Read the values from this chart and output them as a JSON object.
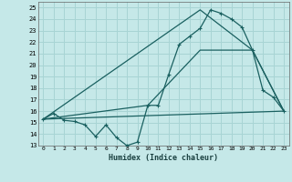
{
  "title": "",
  "xlabel": "Humidex (Indice chaleur)",
  "bg_color": "#c5e8e8",
  "grid_color": "#a8d4d4",
  "line_color": "#1a6060",
  "xlim": [
    -0.5,
    23.5
  ],
  "ylim": [
    13,
    25.5
  ],
  "yticks": [
    13,
    14,
    15,
    16,
    17,
    18,
    19,
    20,
    21,
    22,
    23,
    24,
    25
  ],
  "xticks": [
    0,
    1,
    2,
    3,
    4,
    5,
    6,
    7,
    8,
    9,
    10,
    11,
    12,
    13,
    14,
    15,
    16,
    17,
    18,
    19,
    20,
    21,
    22,
    23
  ],
  "series1_x": [
    0,
    1,
    2,
    3,
    4,
    5,
    6,
    7,
    8,
    9,
    10,
    11,
    12,
    13,
    14,
    15,
    16,
    17,
    18,
    19,
    20,
    21,
    22,
    23
  ],
  "series1_y": [
    15.3,
    15.8,
    15.2,
    15.1,
    14.8,
    13.8,
    14.8,
    13.7,
    13.0,
    13.3,
    16.5,
    16.5,
    19.2,
    21.8,
    22.5,
    23.2,
    24.8,
    24.5,
    24.0,
    23.3,
    21.3,
    17.8,
    17.2,
    16.0
  ],
  "series2_x": [
    0,
    23
  ],
  "series2_y": [
    15.3,
    16.0
  ],
  "series3_x": [
    0,
    10,
    15,
    20,
    23
  ],
  "series3_y": [
    15.3,
    16.5,
    21.3,
    21.3,
    16.0
  ],
  "series4_x": [
    0,
    15,
    20,
    23
  ],
  "series4_y": [
    15.3,
    24.8,
    21.3,
    16.0
  ]
}
